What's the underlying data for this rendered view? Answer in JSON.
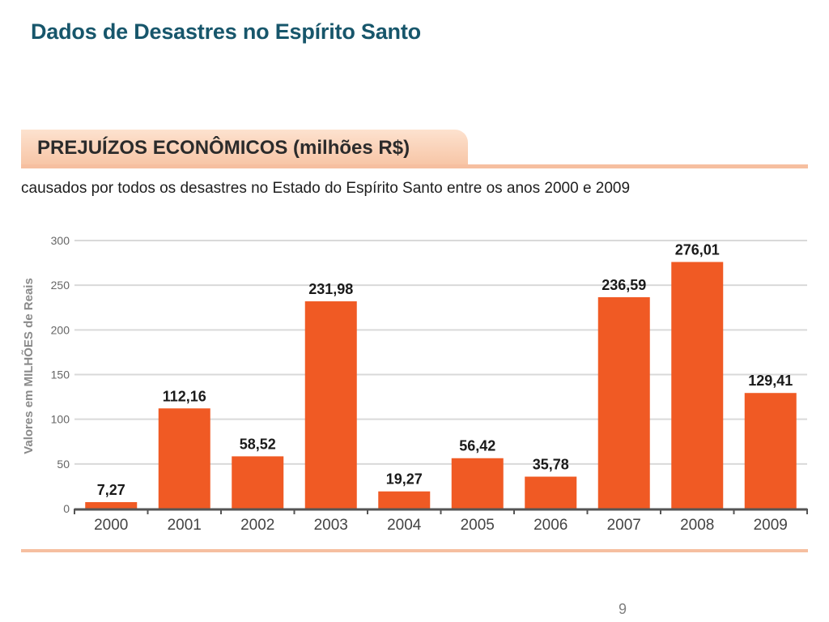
{
  "slide": {
    "title": "Dados de Desastres no Espírito Santo",
    "page_number": "9"
  },
  "panel": {
    "tab_title": "PREJUÍZOS ECONÔMICOS (milhões R$)",
    "subtitle": "causados por todos os desastres no Estado do Espírito Santo entre os anos 2000 e 2009"
  },
  "colors": {
    "bar": "#f05a24",
    "title": "#17566b",
    "panel_accent": "#f6bfa0",
    "grid": "#d9d9d9"
  },
  "chart_data": {
    "type": "bar",
    "title": "PREJUÍZOS ECONÔMICOS (milhões R$)",
    "subtitle": "causados por todos os desastres no Estado do Espírito Santo entre os anos 2000 e 2009",
    "xlabel": "",
    "ylabel": "Valores em MILHÕES de Reais",
    "categories": [
      "2000",
      "2001",
      "2002",
      "2003",
      "2004",
      "2005",
      "2006",
      "2007",
      "2008",
      "2009"
    ],
    "values": [
      7.27,
      112.16,
      58.52,
      231.98,
      19.27,
      56.42,
      35.78,
      236.59,
      276.01,
      129.41
    ],
    "value_labels": [
      "7,27",
      "112,16",
      "58,52",
      "231,98",
      "19,27",
      "56,42",
      "35,78",
      "236,59",
      "276,01",
      "129,41"
    ],
    "ylim": [
      0,
      300
    ],
    "yticks": [
      0,
      50,
      100,
      150,
      200,
      250,
      300
    ],
    "grid": true,
    "legend": "none"
  }
}
